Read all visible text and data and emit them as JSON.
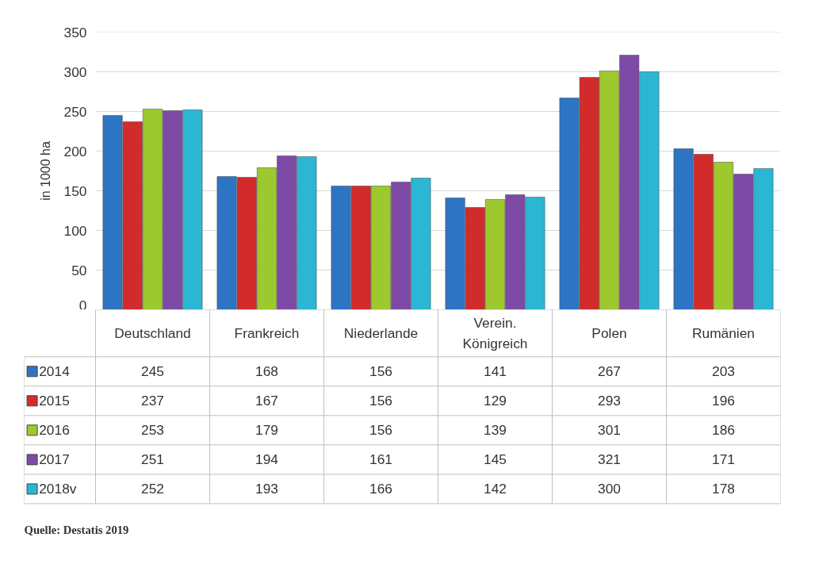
{
  "chart_data": {
    "type": "bar",
    "ylabel": "in 1000 ha",
    "categories": [
      "Deutschland",
      "Frankreich",
      "Niederlande",
      "Verein. Königreich",
      "Polen",
      "Rumänien"
    ],
    "series": [
      {
        "name": "2014",
        "color": "#2e74c4",
        "values": [
          245,
          168,
          156,
          141,
          267,
          203
        ]
      },
      {
        "name": "2015",
        "color": "#d22b2b",
        "values": [
          237,
          167,
          156,
          129,
          293,
          196
        ]
      },
      {
        "name": "2016",
        "color": "#9dc92e",
        "values": [
          253,
          179,
          156,
          139,
          301,
          186
        ]
      },
      {
        "name": "2017",
        "color": "#7d4aa6",
        "values": [
          251,
          194,
          161,
          145,
          321,
          171
        ]
      },
      {
        "name": "2018v",
        "color": "#2bb6d4",
        "values": [
          252,
          193,
          166,
          142,
          300,
          178
        ]
      }
    ],
    "ylim": [
      0,
      350
    ],
    "yticks": [
      0,
      50,
      100,
      150,
      200,
      250,
      300,
      350
    ],
    "grid": "y",
    "legend": "bottom",
    "data_labels": true,
    "tick_labels": "y",
    "annotations": [
      "Quelle: Destatis 2019"
    ]
  }
}
